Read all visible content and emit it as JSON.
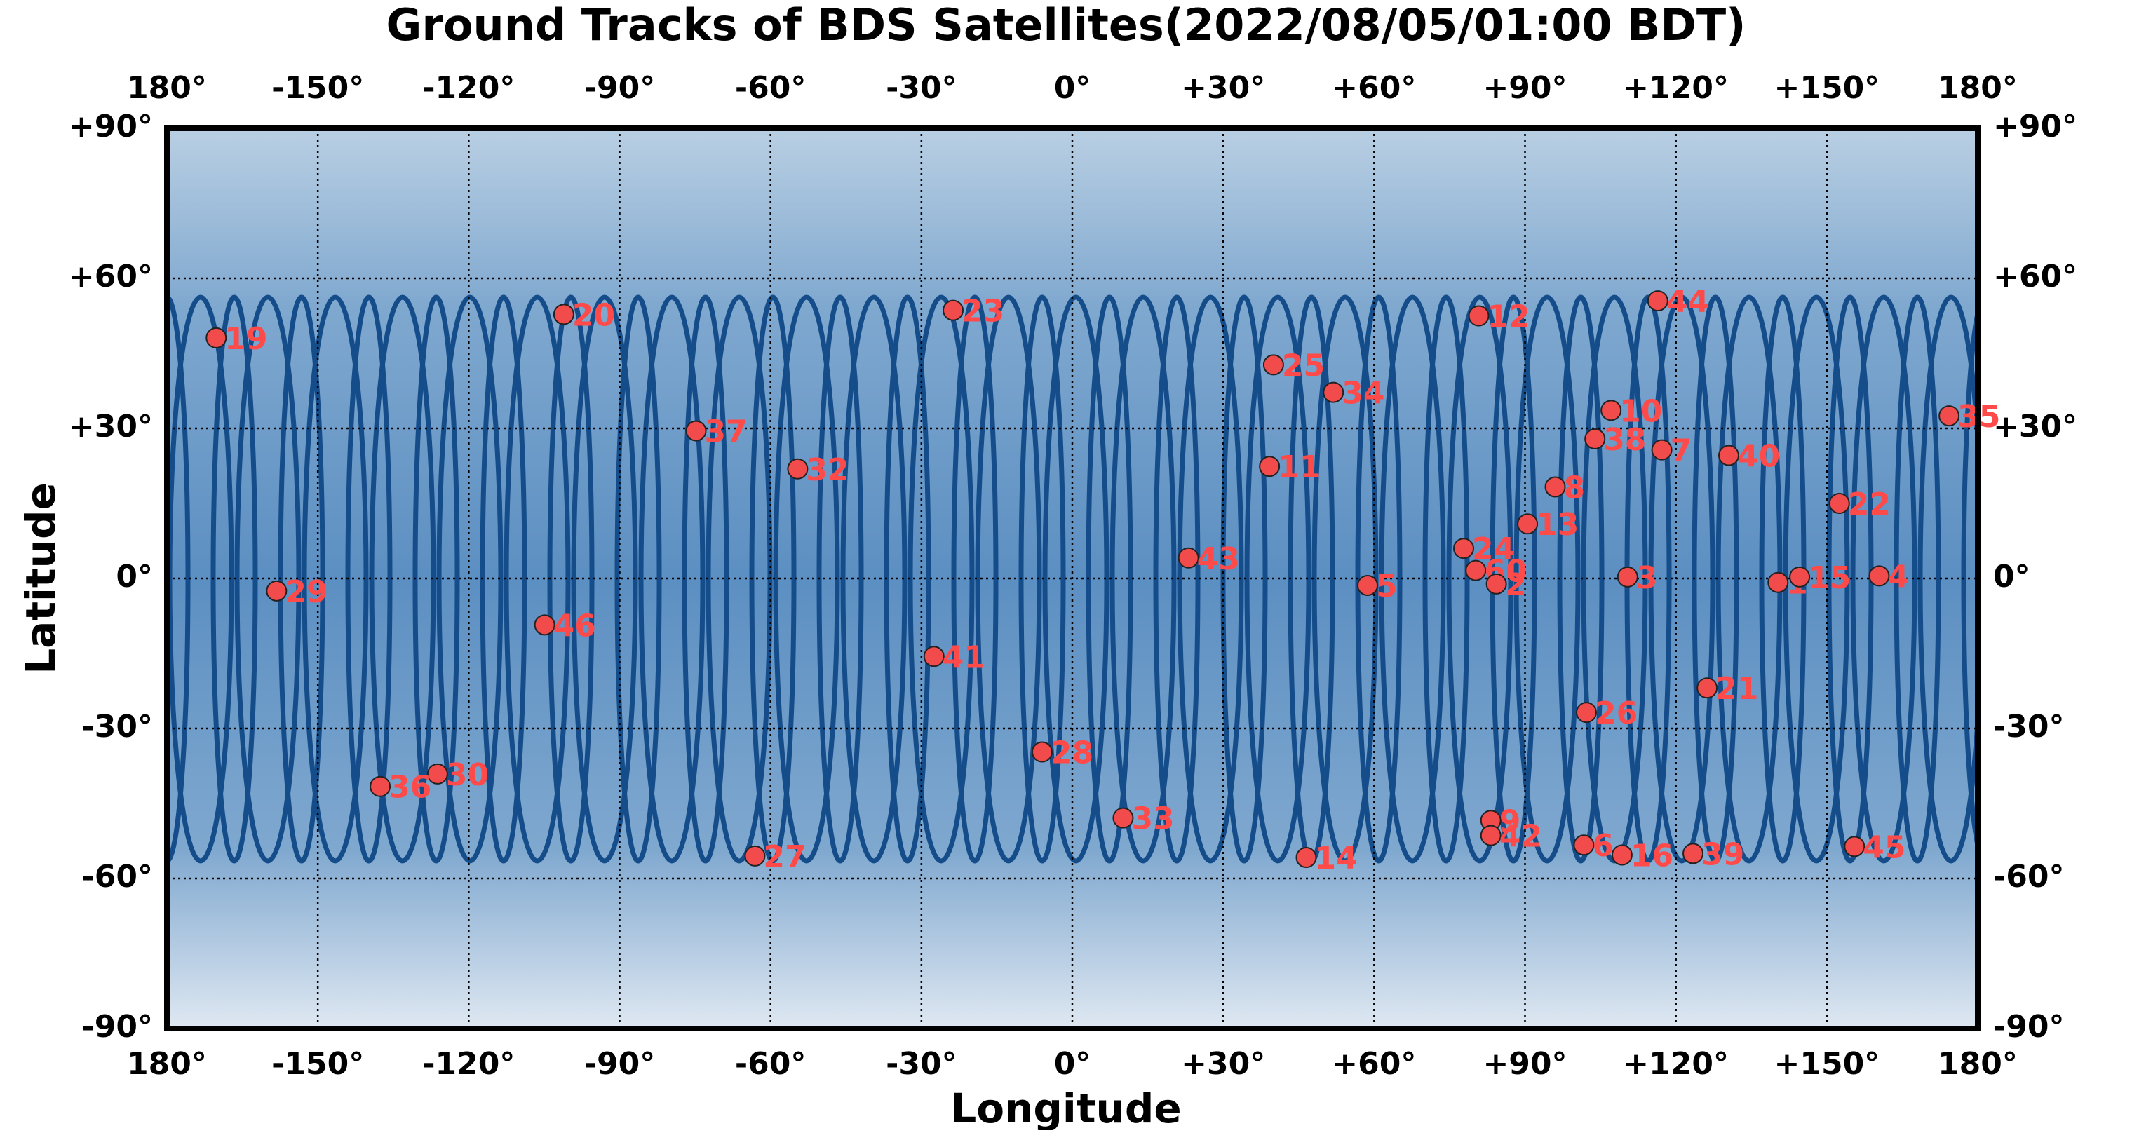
{
  "chart_data": {
    "type": "scatter",
    "title": "Ground Tracks of BDS Satellites(2022/08/05/01:00 BDT)",
    "x_label": "Longitude",
    "y_label": "Latitude",
    "xlim": [
      -180,
      180
    ],
    "ylim": [
      -90,
      90
    ],
    "xticks": [
      {
        "value": -180,
        "label": "180°"
      },
      {
        "value": -150,
        "label": "-150°"
      },
      {
        "value": -120,
        "label": "-120°"
      },
      {
        "value": -90,
        "label": "-90°"
      },
      {
        "value": -60,
        "label": "-60°"
      },
      {
        "value": -30,
        "label": "-30°"
      },
      {
        "value": 0,
        "label": "0°"
      },
      {
        "value": 30,
        "label": "+30°"
      },
      {
        "value": 60,
        "label": "+60°"
      },
      {
        "value": 90,
        "label": "+90°"
      },
      {
        "value": 120,
        "label": "+120°"
      },
      {
        "value": 150,
        "label": "+150°"
      },
      {
        "value": 180,
        "label": "180°"
      }
    ],
    "yticks": [
      {
        "value": 90,
        "label": "+90°"
      },
      {
        "value": 60,
        "label": "+60°"
      },
      {
        "value": 30,
        "label": "+30°"
      },
      {
        "value": 0,
        "label": "0°"
      },
      {
        "value": -30,
        "label": "-30°"
      },
      {
        "value": -60,
        "label": "-60°"
      },
      {
        "value": -90,
        "label": "-90°"
      }
    ],
    "grid": true,
    "color": "#f24b4b",
    "point_labels": [
      "19",
      "20",
      "23",
      "12",
      "44",
      "25",
      "34",
      "10",
      "35",
      "37",
      "38",
      "7",
      "40",
      "32",
      "11",
      "8",
      "22",
      "13",
      "24",
      "43",
      "60",
      "2",
      "3",
      "1",
      "15",
      "4",
      "29",
      "5",
      "46",
      "41",
      "21",
      "26",
      "28",
      "30",
      "36",
      "33",
      "9",
      "42",
      "6",
      "16",
      "39",
      "45",
      "14",
      "27"
    ],
    "x": [
      -170.2,
      -101.1,
      -23.7,
      80.8,
      116.4,
      40.0,
      51.9,
      107.1,
      174.3,
      -74.8,
      103.9,
      117.2,
      130.5,
      -54.6,
      39.2,
      96.0,
      152.5,
      90.5,
      77.8,
      23.1,
      80.2,
      84.3,
      110.4,
      140.3,
      144.6,
      160.4,
      -158.2,
      58.7,
      -104.9,
      -27.5,
      126.2,
      102.2,
      -6.0,
      -126.2,
      -137.6,
      10.1,
      83.2,
      83.2,
      101.7,
      109.3,
      123.4,
      155.5,
      46.5,
      -63.1
    ],
    "values": [
      48.1,
      52.8,
      53.6,
      52.5,
      55.5,
      42.7,
      37.2,
      33.6,
      32.5,
      29.5,
      27.9,
      25.7,
      24.6,
      21.9,
      22.4,
      18.3,
      15.0,
      10.9,
      6.0,
      4.1,
      1.6,
      -1.1,
      0.3,
      -0.8,
      0.3,
      0.5,
      -2.5,
      -1.4,
      -9.3,
      -15.6,
      -21.9,
      -26.8,
      -34.7,
      -39.1,
      -41.6,
      -47.9,
      -48.4,
      -51.4,
      -53.3,
      -55.3,
      -55.0,
      -53.6,
      -55.8,
      -55.5
    ]
  }
}
